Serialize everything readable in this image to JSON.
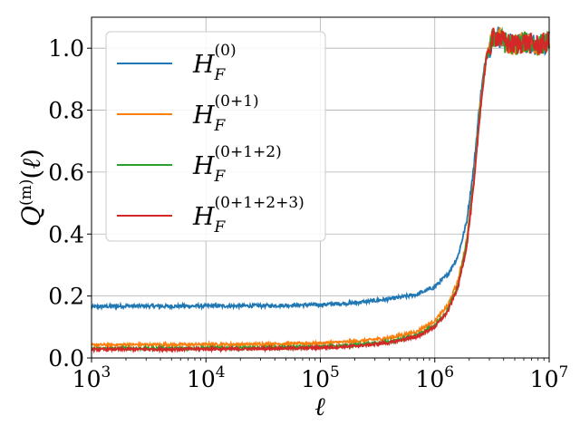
{
  "chart_data": {
    "type": "line",
    "xscale": "log",
    "xlim": [
      1000,
      10000000
    ],
    "ylim": [
      0.0,
      1.1
    ],
    "grid": true,
    "legend_position": "upper-left",
    "xlabel": "ℓ",
    "ylabel": "Q^(m)(ℓ)",
    "x_ticks": [
      {
        "base": "10",
        "exp": "3"
      },
      {
        "base": "10",
        "exp": "4"
      },
      {
        "base": "10",
        "exp": "5"
      },
      {
        "base": "10",
        "exp": "6"
      },
      {
        "base": "10",
        "exp": "7"
      }
    ],
    "y_ticks": [
      "0.0",
      "0.2",
      "0.4",
      "0.6",
      "0.8",
      "1.0"
    ],
    "y_tick_values": [
      0.0,
      0.2,
      0.4,
      0.6,
      0.8,
      1.0
    ],
    "x": [
      1000,
      2000,
      5000,
      10000,
      20000,
      50000,
      100000,
      200000,
      400000,
      700000,
      1000000,
      1300000,
      1600000,
      1900000,
      2200000,
      2500000,
      2800000,
      3200000,
      3600000,
      4000000,
      5000000,
      6000000,
      8000000,
      10000000
    ],
    "series": [
      {
        "name": "H_F^(0)",
        "base": "H",
        "sub": "F",
        "sup": "(0)",
        "color": "#1f77b4",
        "values": [
          0.165,
          0.168,
          0.167,
          0.168,
          0.168,
          0.17,
          0.172,
          0.178,
          0.19,
          0.205,
          0.23,
          0.27,
          0.33,
          0.44,
          0.62,
          0.84,
          0.97,
          1.03,
          1.04,
          1.02,
          1.01,
          1.02,
          1.01,
          1.02
        ]
      },
      {
        "name": "H_F^(0+1)",
        "base": "H",
        "sub": "F",
        "sup": "(0+1)",
        "color": "#ff7f0e",
        "values": [
          0.042,
          0.043,
          0.043,
          0.044,
          0.044,
          0.046,
          0.048,
          0.053,
          0.065,
          0.085,
          0.12,
          0.17,
          0.25,
          0.38,
          0.58,
          0.82,
          0.97,
          1.03,
          1.04,
          1.02,
          1.01,
          1.02,
          1.01,
          1.02
        ]
      },
      {
        "name": "H_F^(0+1+2)",
        "base": "H",
        "sub": "F",
        "sup": "(0+1+2)",
        "color": "#2ca02c",
        "values": [
          0.03,
          0.031,
          0.031,
          0.032,
          0.032,
          0.034,
          0.036,
          0.041,
          0.052,
          0.072,
          0.105,
          0.155,
          0.235,
          0.37,
          0.57,
          0.81,
          0.96,
          1.03,
          1.04,
          1.02,
          1.01,
          1.02,
          1.01,
          1.02
        ]
      },
      {
        "name": "H_F^(0+1+2+3)",
        "base": "H",
        "sub": "F",
        "sup": "(0+1+2+3)",
        "color": "#d62728",
        "values": [
          0.027,
          0.028,
          0.028,
          0.029,
          0.029,
          0.031,
          0.033,
          0.038,
          0.049,
          0.069,
          0.1,
          0.15,
          0.23,
          0.36,
          0.56,
          0.8,
          0.96,
          1.03,
          1.04,
          1.02,
          1.01,
          1.02,
          1.01,
          1.02
        ]
      }
    ]
  }
}
